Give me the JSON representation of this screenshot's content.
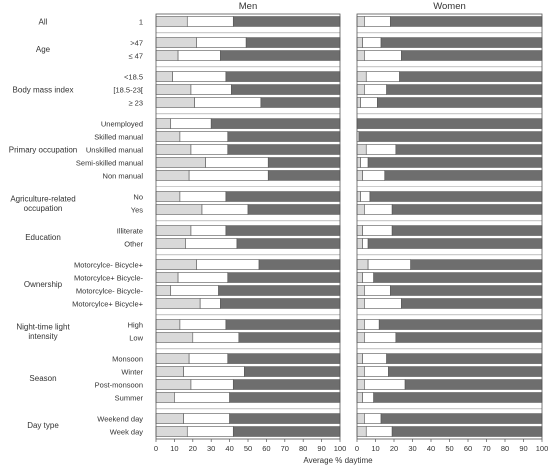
{
  "chart_data": {
    "type": "bar",
    "orientation": "horizontal",
    "stacked": true,
    "xlabel": "Average % daytime",
    "xlim": [
      0,
      100
    ],
    "xticks": [
      0,
      10,
      20,
      30,
      40,
      50,
      60,
      70,
      80,
      90,
      100
    ],
    "colors": {
      "seg1": "#d9d9d9",
      "seg2": "#ffffff",
      "seg3": "#6e6e6e",
      "stroke": "#555555"
    },
    "groups": [
      {
        "label": "All",
        "rows": [
          "1"
        ]
      },
      {
        "label": "Age",
        "rows": [
          ">47",
          "≤ 47"
        ]
      },
      {
        "label": "Body mass index",
        "rows": [
          "<18.5",
          "[18.5-23[",
          "≥ 23"
        ]
      },
      {
        "label": "Primary occupation",
        "rows": [
          "Unemployed",
          "Skilled manual",
          "Unskilled manual",
          "Semi-skilled manual",
          "Non manual"
        ]
      },
      {
        "label": "Agriculture-related occupation",
        "label_lines": [
          "Agriculture-related",
          "occupation"
        ],
        "rows": [
          "No",
          "Yes"
        ]
      },
      {
        "label": "Education",
        "rows": [
          "Illiterate",
          "Other"
        ]
      },
      {
        "label": "Ownership",
        "rows": [
          "Motorcylce- Bicycle+",
          "Motorcylce+ Bicycle-",
          "Motorcylce- Bicycle-",
          "Motorcylce+ Bicycle+"
        ]
      },
      {
        "label": "Night-time light intensity",
        "label_lines": [
          "Night-time light",
          "intensity"
        ],
        "rows": [
          "High",
          "Low"
        ]
      },
      {
        "label": "Season",
        "rows": [
          "Monsoon",
          "Winter",
          "Post-monsoon",
          "Summer"
        ]
      },
      {
        "label": "Day type",
        "rows": [
          "Weekend day",
          "Week day"
        ]
      }
    ],
    "panels": [
      {
        "title": "Men",
        "values": [
          [
            17,
            25,
            58
          ],
          [
            22,
            27,
            51
          ],
          [
            12,
            23,
            65
          ],
          [
            9,
            29,
            62
          ],
          [
            19,
            22,
            59
          ],
          [
            21,
            36,
            43
          ],
          [
            8,
            22,
            70
          ],
          [
            13,
            26,
            61
          ],
          [
            19,
            20,
            61
          ],
          [
            27,
            34,
            39
          ],
          [
            18,
            43,
            39
          ],
          [
            13,
            25,
            62
          ],
          [
            25,
            25,
            50
          ],
          [
            19,
            19,
            62
          ],
          [
            16,
            28,
            56
          ],
          [
            22,
            34,
            44
          ],
          [
            12,
            27,
            61
          ],
          [
            8,
            26,
            66
          ],
          [
            24,
            11,
            65
          ],
          [
            13,
            25,
            62
          ],
          [
            20,
            25,
            55
          ],
          [
            18,
            21,
            61
          ],
          [
            15,
            33,
            52
          ],
          [
            19,
            23,
            58
          ],
          [
            10,
            30,
            60
          ],
          [
            15,
            25,
            60
          ],
          [
            17,
            25,
            58
          ]
        ]
      },
      {
        "title": "Women",
        "values": [
          [
            4,
            14,
            82
          ],
          [
            3,
            10,
            87
          ],
          [
            4,
            20,
            76
          ],
          [
            5,
            18,
            77
          ],
          [
            4,
            12,
            84
          ],
          [
            2,
            9,
            89
          ],
          [
            0,
            0,
            100
          ],
          [
            0,
            1,
            99
          ],
          [
            5,
            16,
            79
          ],
          [
            2,
            4,
            94
          ],
          [
            3,
            12,
            85
          ],
          [
            2,
            5,
            93
          ],
          [
            4,
            15,
            81
          ],
          [
            3,
            16,
            81
          ],
          [
            3,
            3,
            94
          ],
          [
            6,
            23,
            71
          ],
          [
            3,
            6,
            91
          ],
          [
            4,
            14,
            82
          ],
          [
            4,
            20,
            76
          ],
          [
            4,
            8,
            88
          ],
          [
            4,
            17,
            79
          ],
          [
            3,
            13,
            84
          ],
          [
            4,
            13,
            83
          ],
          [
            4,
            22,
            74
          ],
          [
            3,
            6,
            91
          ],
          [
            4,
            9,
            87
          ],
          [
            5,
            14,
            81
          ]
        ]
      }
    ]
  }
}
